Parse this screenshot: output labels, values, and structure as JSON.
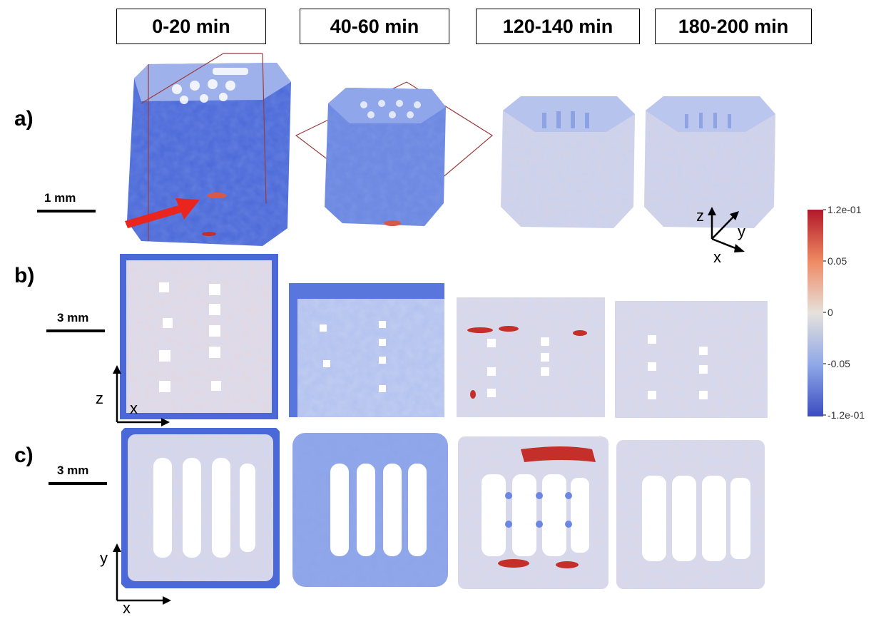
{
  "headers": [
    "0-20 min",
    "40-60 min",
    "120-140 min",
    "180-200 min"
  ],
  "rows": {
    "a": "a)",
    "b": "b)",
    "c": "c)"
  },
  "scales": {
    "a": "1 mm",
    "b": "3 mm",
    "c": "3 mm"
  },
  "axes": {
    "a": {
      "z": "z",
      "y": "y",
      "x": "x"
    },
    "b": {
      "z": "z",
      "x": "x"
    },
    "c": {
      "y": "y",
      "x": "x"
    }
  },
  "colorbar": {
    "ticks": [
      "1.2e-01",
      "0.05",
      "0",
      "-0.05",
      "-1.2e-01"
    ],
    "colors": [
      "#b2182b",
      "#ef8a62",
      "#e6e1dc",
      "#8fa8e8",
      "#3b4cc0"
    ]
  },
  "colors": {
    "strong_blue": "#4a68d8",
    "light_blue": "#c9d3ef",
    "red": "#c42f2a",
    "arrow": "#e8251f"
  }
}
